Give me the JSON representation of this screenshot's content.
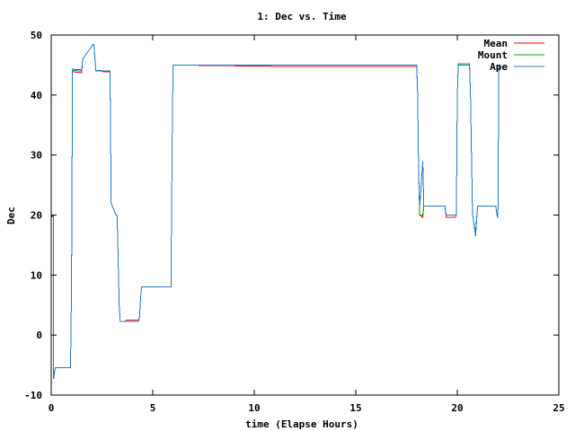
{
  "chart_data": {
    "type": "line",
    "title": "1: Dec vs. Time",
    "xlabel": "time (Elapse Hours)",
    "ylabel": "Dec",
    "xlim": [
      0,
      25
    ],
    "ylim": [
      -10,
      50
    ],
    "x_ticks": [
      0,
      5,
      10,
      15,
      20,
      25
    ],
    "y_ticks": [
      -10,
      0,
      10,
      20,
      30,
      40,
      50
    ],
    "grid": false,
    "legend_position": "top-right",
    "series": [
      {
        "name": "Mean",
        "color": "#ff0000",
        "x": [
          0,
          0.1,
          0.12,
          0.2,
          0.22,
          0.95,
          1.0,
          1.05,
          1.5,
          1.55,
          2.05,
          2.1,
          2.2,
          2.5,
          2.55,
          2.9,
          2.95,
          3.2,
          3.25,
          3.35,
          3.4,
          3.65,
          3.7,
          4.3,
          4.35,
          4.4,
          4.45,
          5.9,
          5.95,
          6.0,
          11,
          18,
          18.05,
          18.1,
          18.15,
          18.3,
          18.35,
          19.4,
          19.45,
          19.9,
          19.95,
          20.0,
          20.05,
          20.6,
          20.65,
          20.7,
          20.75,
          20.8,
          20.9,
          21.0,
          21.05,
          21.9,
          21.95,
          22.0,
          22.05,
          22.1
        ],
        "y": [
          19.7,
          19.7,
          -7,
          -5.4,
          -5.4,
          -5.4,
          8,
          43.9,
          43.7,
          46,
          48.4,
          48.4,
          44,
          44,
          43.9,
          43.9,
          22,
          19.9,
          19.9,
          5,
          2.3,
          2.3,
          2.5,
          2.5,
          3,
          6,
          8,
          8,
          30,
          45,
          44.8,
          44.8,
          40,
          26,
          20,
          19.6,
          21.5,
          21.5,
          19.6,
          19.6,
          20,
          40,
          45,
          45,
          40,
          30,
          20,
          19,
          17,
          21.5,
          21.5,
          21.5,
          20,
          19.5,
          45,
          45
        ]
      },
      {
        "name": "Mount",
        "color": "#00a000",
        "x": [
          0,
          0.1,
          0.12,
          0.2,
          0.22,
          0.95,
          1.0,
          1.05,
          1.5,
          1.55,
          2.05,
          2.1,
          2.2,
          2.5,
          2.55,
          2.9,
          2.95,
          3.2,
          3.25,
          3.35,
          3.4,
          3.65,
          3.7,
          4.3,
          4.35,
          4.4,
          4.45,
          5.9,
          5.95,
          6.0,
          11,
          18,
          18.05,
          18.1,
          18.15,
          18.3,
          18.35,
          19.4,
          19.45,
          19.9,
          19.95,
          20.0,
          20.05,
          20.6,
          20.65,
          20.7,
          20.75,
          20.8,
          20.9,
          21.0,
          21.05,
          21.9,
          21.95,
          22.0,
          22.05,
          22.1
        ],
        "y": [
          19.9,
          19.9,
          -7,
          -5.4,
          -5.4,
          -5.4,
          8,
          44.3,
          44.2,
          46,
          48.4,
          48.4,
          44,
          44,
          44,
          44,
          22,
          19.9,
          19.9,
          5,
          2.3,
          2.3,
          2.3,
          2.3,
          3,
          6,
          8,
          8,
          30,
          45,
          45,
          45,
          40,
          26,
          20,
          20,
          21.5,
          21.5,
          20,
          20,
          20,
          40,
          45.2,
          45.2,
          40,
          30,
          20,
          19,
          17,
          21.5,
          21.5,
          21.5,
          20,
          19.5,
          45,
          45
        ]
      },
      {
        "name": "Ape",
        "color": "#1f78c8",
        "x": [
          0,
          0.1,
          0.12,
          0.2,
          0.22,
          0.95,
          1.0,
          1.05,
          1.5,
          1.55,
          2.05,
          2.1,
          2.2,
          2.5,
          2.55,
          2.9,
          2.95,
          3.2,
          3.25,
          3.35,
          3.4,
          3.65,
          3.7,
          4.3,
          4.35,
          4.4,
          4.45,
          5.9,
          5.95,
          6.0,
          11,
          18,
          18.05,
          18.1,
          18.15,
          18.3,
          18.35,
          19.4,
          19.45,
          19.9,
          19.95,
          20.0,
          20.05,
          20.6,
          20.65,
          20.7,
          20.75,
          20.8,
          20.9,
          21.0,
          21.05,
          21.9,
          21.95,
          22.0,
          22.05,
          22.1
        ],
        "y": [
          19.8,
          19.8,
          -7.3,
          -5.4,
          -5.4,
          -5.4,
          8,
          44.1,
          44.0,
          46,
          48.4,
          48.4,
          44.1,
          44.1,
          44.0,
          44.0,
          22,
          19.9,
          19.9,
          5,
          2.3,
          2.3,
          2.3,
          2.3,
          3,
          6,
          8,
          8,
          30,
          45,
          45,
          45,
          40,
          26,
          21.5,
          29,
          21.5,
          21.5,
          20,
          20,
          20,
          40,
          45,
          45,
          40,
          30,
          20,
          19,
          16.5,
          21.5,
          21.5,
          21.5,
          20,
          19.5,
          45,
          45
        ]
      }
    ]
  }
}
